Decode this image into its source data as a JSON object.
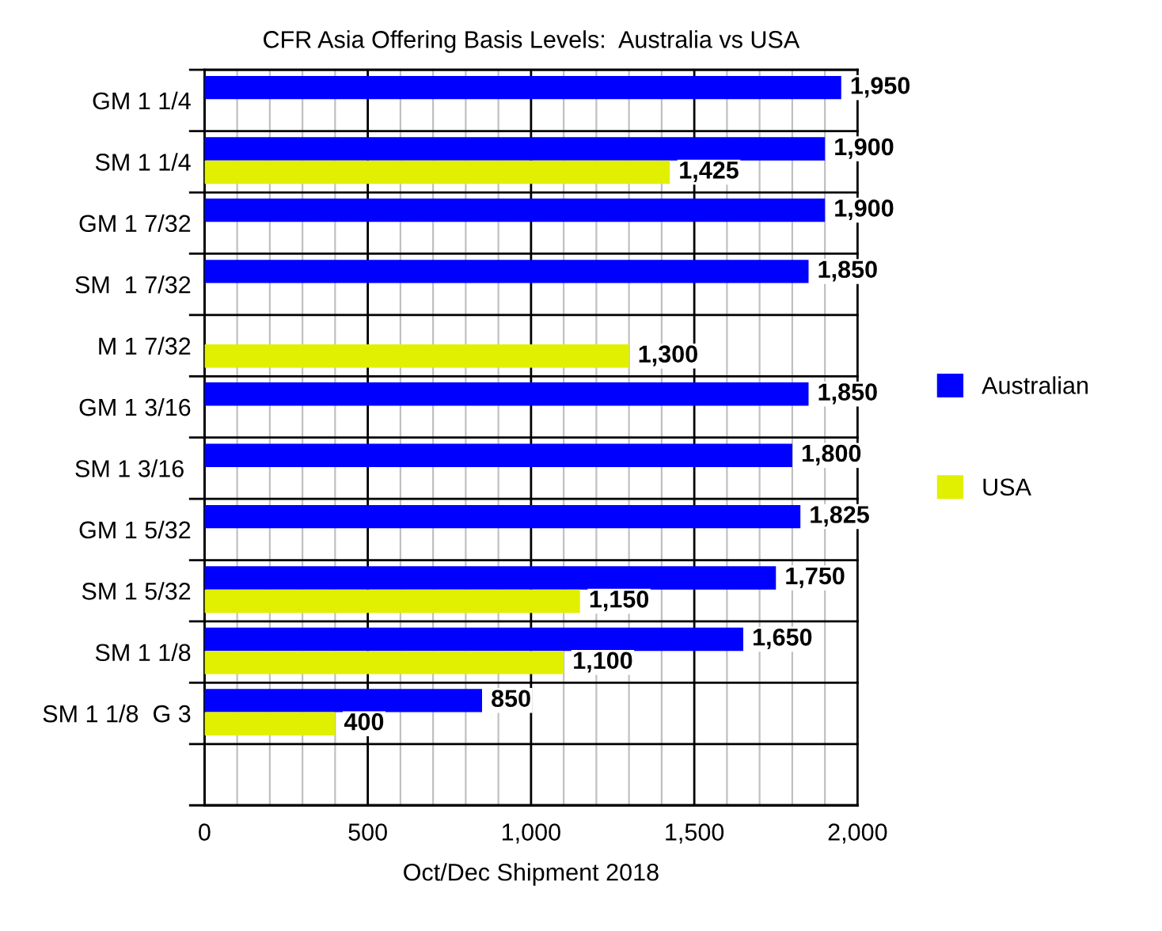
{
  "chart_data": {
    "type": "bar",
    "orientation": "horizontal",
    "title": "CFR Asia Offering Basis Levels:  Australia vs USA",
    "xlabel": "Oct/Dec Shipment 2018",
    "categories": [
      "GM 1 1/4",
      "SM 1 1/4",
      "GM 1 7/32",
      "SM  1 7/32",
      "M 1 7/32",
      "GM 1 3/16",
      "SM 1 3/16 ",
      "GM 1 5/32",
      "SM 1 5/32",
      "SM 1 1/8",
      "SM 1 1/8  G 3",
      null
    ],
    "series": [
      {
        "name": "Australian",
        "color": "#0000ff",
        "values": [
          1950,
          1900,
          1900,
          1850,
          null,
          1850,
          1800,
          1825,
          1750,
          1650,
          850,
          null
        ],
        "value_labels": [
          "1,950",
          "1,900",
          "1,900",
          "1,850",
          null,
          "1,850",
          "1,800",
          "1,825",
          "1,750",
          "1,650",
          "850",
          null
        ]
      },
      {
        "name": "USA",
        "color": "#e0f000",
        "values": [
          null,
          1425,
          null,
          null,
          1300,
          null,
          null,
          null,
          1150,
          1100,
          400,
          null
        ],
        "value_labels": [
          null,
          "1,425",
          null,
          null,
          "1,300",
          null,
          null,
          null,
          "1,150",
          "1,100",
          "400",
          null
        ]
      }
    ],
    "xlim": [
      0,
      2000
    ],
    "xticks": [
      0,
      {
        "value": 100,
        "label": null
      },
      {
        "value": 200,
        "label": null
      },
      {
        "value": 300,
        "label": null
      },
      {
        "value": 400,
        "label": null
      },
      500,
      {
        "value": 600,
        "label": null
      },
      {
        "value": 700,
        "label": null
      },
      {
        "value": 800,
        "label": null
      },
      {
        "value": 900,
        "label": null
      },
      {
        "value": 1000,
        "label": "1,000"
      },
      {
        "value": 1100,
        "label": null
      },
      {
        "value": 1200,
        "label": null
      },
      {
        "value": 1300,
        "label": null
      },
      {
        "value": 1400,
        "label": null
      },
      {
        "value": 1500,
        "label": "1,500"
      },
      {
        "value": 1600,
        "label": null
      },
      {
        "value": 1700,
        "label": null
      },
      {
        "value": 1800,
        "label": null
      },
      {
        "value": 1900,
        "label": null
      },
      {
        "value": 2000,
        "label": "2,000"
      }
    ],
    "grid": true,
    "legend": "right"
  }
}
